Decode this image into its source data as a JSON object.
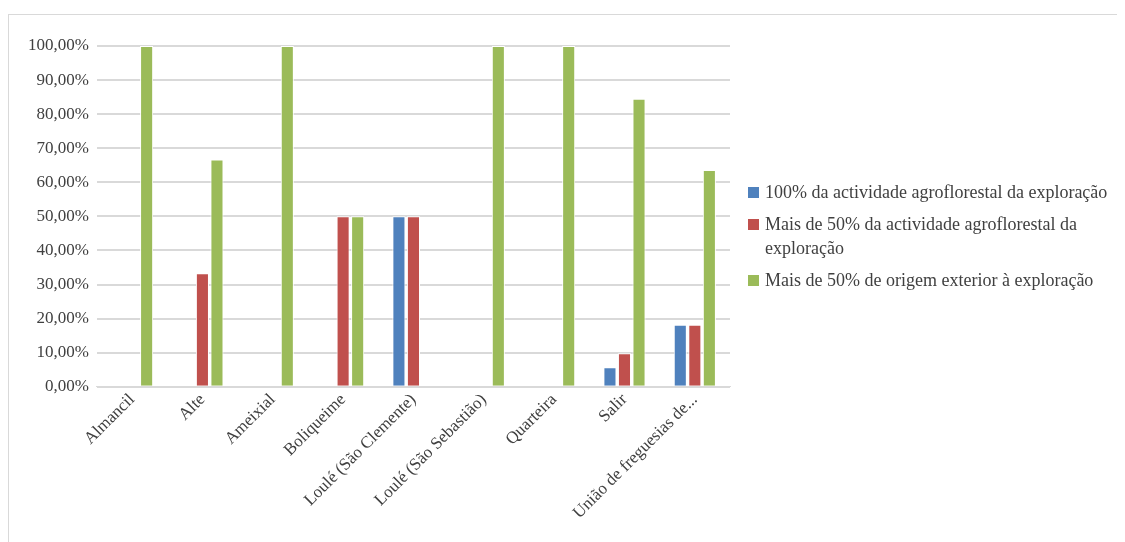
{
  "chart_data": {
    "type": "bar",
    "categories": [
      "Almancil",
      "Alte",
      "Ameixial",
      "Boliqueime",
      "Loulé (São Clemente)",
      "Loulé (São Sebastião)",
      "Quarteira",
      "Salir",
      "União de freguesias de..."
    ],
    "series": [
      {
        "name": "100% da actividade agroflorestal da exploração",
        "color": "#4f81bd",
        "values": [
          0,
          0,
          0,
          0,
          50,
          0,
          0,
          5.7,
          18.2
        ]
      },
      {
        "name": "Mais de 50% da actividade agroflorestal da exploração",
        "color": "#c0504d",
        "values": [
          0,
          33.3,
          0,
          50,
          50,
          0,
          0,
          9.8,
          18.2
        ]
      },
      {
        "name": "Mais de 50% de origem exterior à exploração",
        "color": "#9bbb59",
        "values": [
          100,
          66.7,
          100,
          50,
          0,
          100,
          100,
          84.5,
          63.6
        ]
      }
    ],
    "ylim": [
      0,
      100
    ],
    "yticks": [
      {
        "value": 0,
        "label": "0,00%"
      },
      {
        "value": 10,
        "label": "10,00%"
      },
      {
        "value": 20,
        "label": "20,00%"
      },
      {
        "value": 30,
        "label": "30,00%"
      },
      {
        "value": 40,
        "label": "40,00%"
      },
      {
        "value": 50,
        "label": "50,00%"
      },
      {
        "value": 60,
        "label": "60,00%"
      },
      {
        "value": 70,
        "label": "70,00%"
      },
      {
        "value": 80,
        "label": "80,00%"
      },
      {
        "value": 90,
        "label": "90,00%"
      },
      {
        "value": 100,
        "label": "100,00%"
      }
    ],
    "grid": "y",
    "legend": "right"
  }
}
